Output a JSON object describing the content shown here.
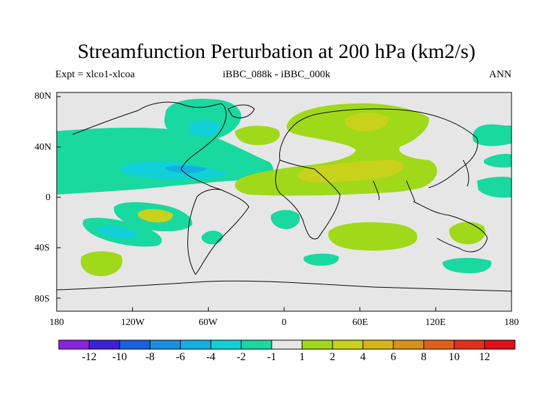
{
  "title": "Streamfunction Perturbation at 200 hPa (km2/s)",
  "subtitle_left": "Expt = xlco1-xlcoa",
  "subtitle_center": "iBBC_088k - iBBC_000k",
  "subtitle_right": "ANN",
  "y_ticks": [
    "80N",
    "40N",
    "0",
    "40S",
    "80S"
  ],
  "x_ticks": [
    "180",
    "120W",
    "60W",
    "0",
    "60E",
    "120E",
    "180"
  ],
  "colorbar": {
    "labels": [
      "-12",
      "-10",
      "-8",
      "-6",
      "-4",
      "-2",
      "-1",
      "1",
      "2",
      "4",
      "6",
      "8",
      "10",
      "12"
    ],
    "colors": [
      "#8b22e0",
      "#3b22d8",
      "#1a60e0",
      "#1a8ee0",
      "#12b0e0",
      "#12d0d8",
      "#19d8a0",
      "#e6e6e6",
      "#a0d81a",
      "#c8d21a",
      "#d8b41a",
      "#d8901a",
      "#e0601a",
      "#e0301a",
      "#e0101a"
    ]
  },
  "colors": {
    "background": "#e6e6e6",
    "neg1": "#19d8a0",
    "neg2": "#12d0d8",
    "neg3": "#12b0e0",
    "pos1": "#a0d81a",
    "pos2": "#c8d21a"
  }
}
